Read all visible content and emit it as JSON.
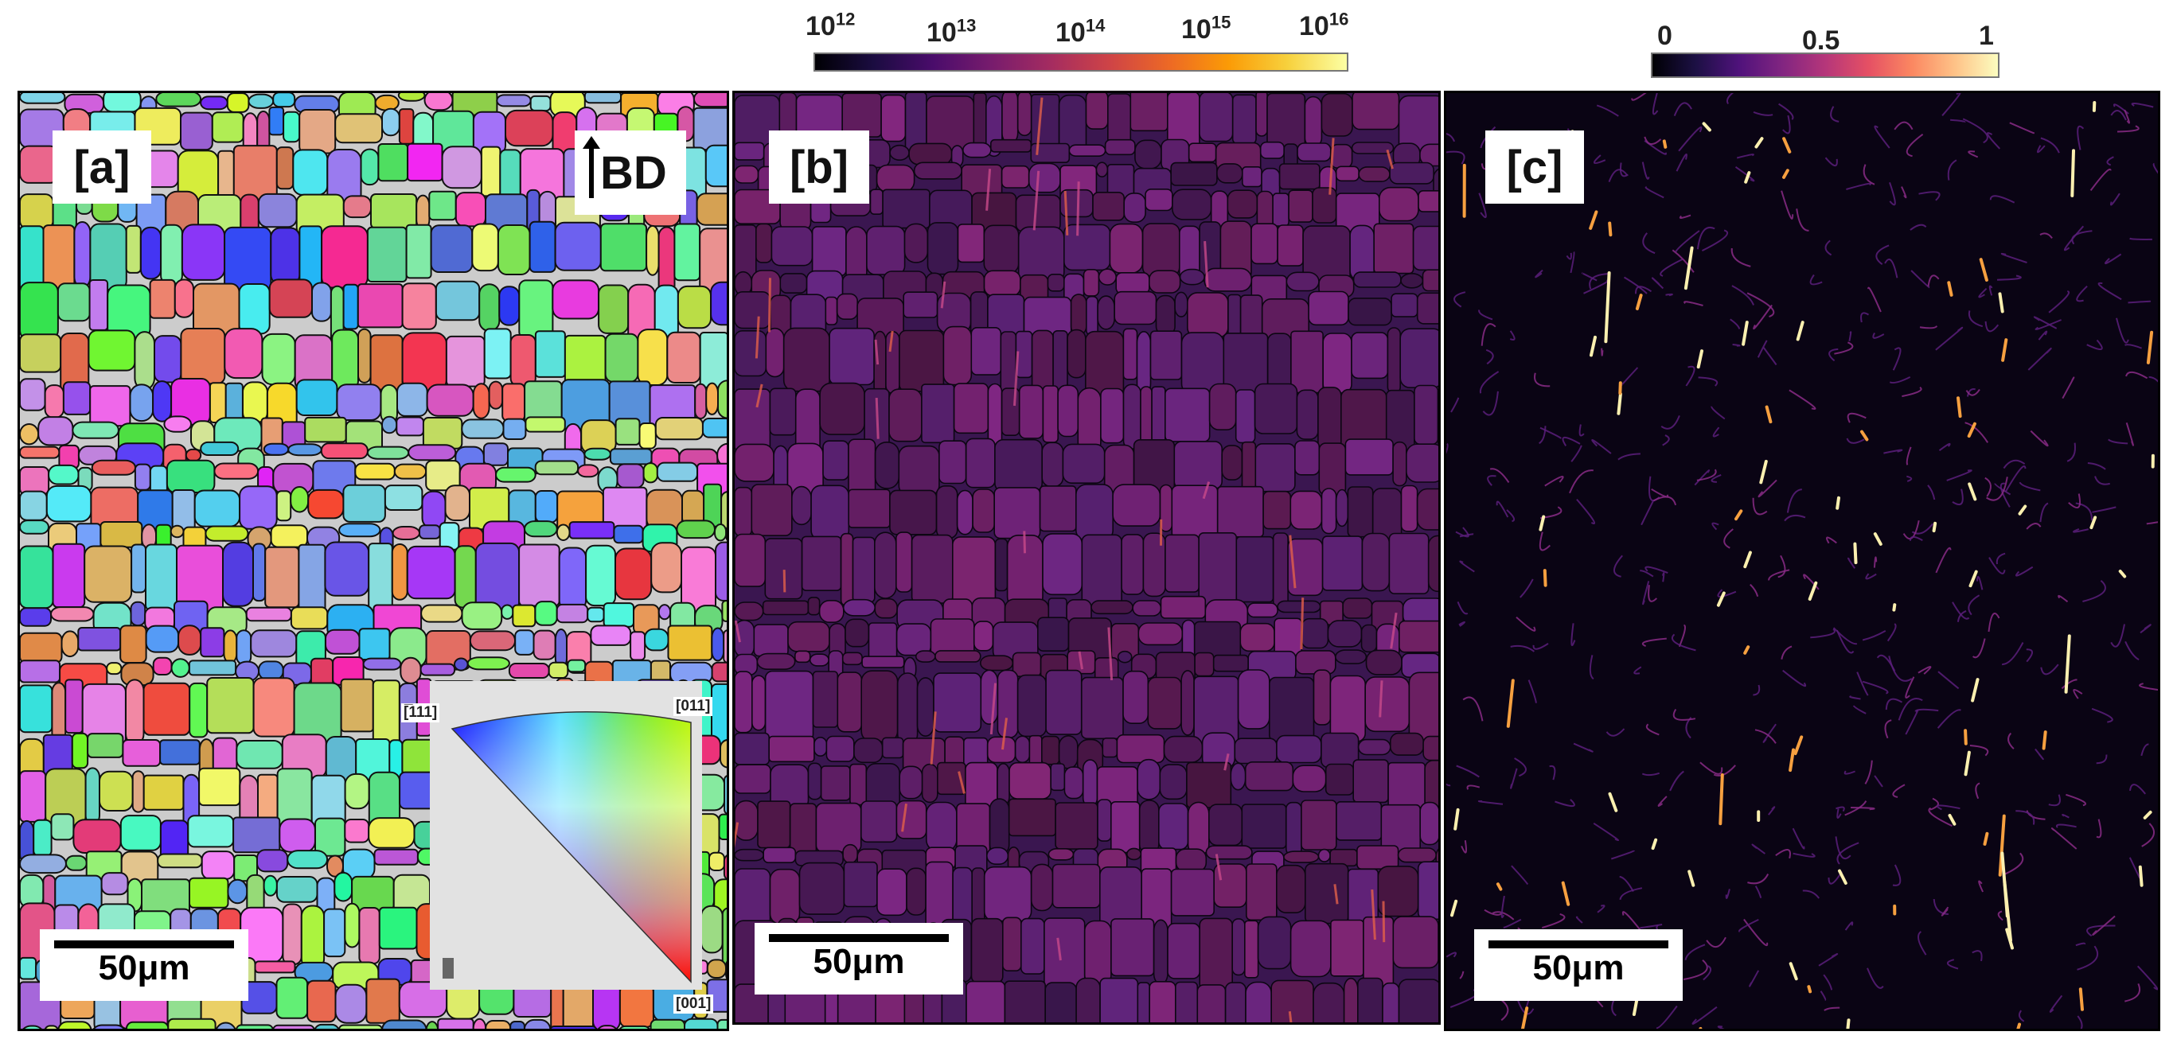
{
  "colorbars": {
    "density": {
      "ticks": [
        {
          "base": "10",
          "exp": "12"
        },
        {
          "base": "10",
          "exp": "13"
        },
        {
          "base": "10",
          "exp": "14"
        },
        {
          "base": "10",
          "exp": "15"
        },
        {
          "base": "10",
          "exp": "16"
        }
      ]
    },
    "fraction": {
      "ticks": [
        "0",
        "0.5",
        "1"
      ]
    }
  },
  "panels": {
    "a": {
      "label": "[a]",
      "scalebar": "50μm",
      "bd_label": "BD"
    },
    "b": {
      "label": "[b]",
      "scalebar": "50μm"
    },
    "c": {
      "label": "[c]",
      "scalebar": "50μm"
    }
  },
  "ipf_legend": {
    "corner_111": "[̅111]",
    "corner_011": "[011]",
    "corner_001": "[001]"
  }
}
